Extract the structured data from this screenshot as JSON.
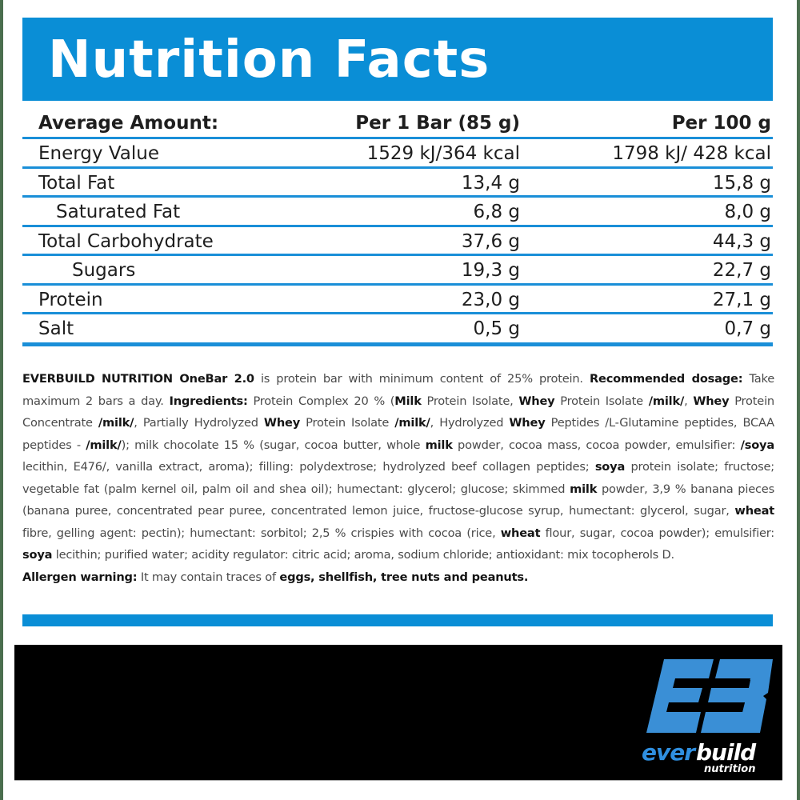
{
  "header": {
    "title": "Nutrition Facts",
    "color": "#0a8ed6"
  },
  "table": {
    "columns": {
      "label": "Average Amount:",
      "per_bar": "Per 1 Bar (85 g)",
      "per_100g": "Per 100 g"
    },
    "rows": [
      {
        "label": "Energy Value",
        "per_bar": "1529 kJ/364 kcal",
        "per_100g": "1798 kJ/ 428 kcal",
        "indent": 0
      },
      {
        "label": "Total Fat",
        "per_bar": "13,4 g",
        "per_100g": "15,8 g",
        "indent": 0
      },
      {
        "label": "Saturated Fat",
        "per_bar": "6,8 g",
        "per_100g": "8,0 g",
        "indent": 1
      },
      {
        "label": "Total Carbohydrate",
        "per_bar": "37,6 g",
        "per_100g": "44,3 g",
        "indent": 0
      },
      {
        "label": "Sugars",
        "per_bar": "19,3 g",
        "per_100g": "22,7 g",
        "indent": 2
      },
      {
        "label": "Protein",
        "per_bar": "23,0 g",
        "per_100g": "27,1 g",
        "indent": 0
      },
      {
        "label": "Salt",
        "per_bar": "0,5 g",
        "per_100g": "0,7 g",
        "indent": 0
      }
    ]
  },
  "description": {
    "product_name": "EVERBUILD NUTRITION OneBar 2.0",
    "intro": " is protein bar with minimum content of 25% protein. ",
    "dosage_label": "Recommended dosage:",
    "dosage_text": " Take maximum 2 bars a day. ",
    "ingredients_label": "Ingredients:",
    "ingredients_parts": [
      {
        "t": " Protein Complex 20 % (",
        "b": false
      },
      {
        "t": "Milk",
        "b": true
      },
      {
        "t": " Protein Isolate, ",
        "b": false
      },
      {
        "t": "Whey",
        "b": true
      },
      {
        "t": " Protein Isolate ",
        "b": false
      },
      {
        "t": "/milk/",
        "b": true
      },
      {
        "t": ", ",
        "b": false
      },
      {
        "t": "Whey",
        "b": true
      },
      {
        "t": " Protein Concentrate ",
        "b": false
      },
      {
        "t": "/milk/",
        "b": true
      },
      {
        "t": ", Partially Hydrolyzed ",
        "b": false
      },
      {
        "t": "Whey",
        "b": true
      },
      {
        "t": " Protein Isolate ",
        "b": false
      },
      {
        "t": "/milk/",
        "b": true
      },
      {
        "t": ", Hydrolyzed ",
        "b": false
      },
      {
        "t": "Whey",
        "b": true
      },
      {
        "t": " Peptides /L-Glutamine peptides, BCAA peptides - ",
        "b": false
      },
      {
        "t": "/milk/",
        "b": true
      },
      {
        "t": "); milk chocolate 15 % (sugar, cocoa butter, whole ",
        "b": false
      },
      {
        "t": "milk",
        "b": true
      },
      {
        "t": " powder, cocoa mass, cocoa powder, emulsifier: ",
        "b": false
      },
      {
        "t": "/soya",
        "b": true
      },
      {
        "t": " lecithin, E476/, vanilla extract, aroma); filling: polydextrose; hydrolyzed beef collagen peptides; ",
        "b": false
      },
      {
        "t": "soya",
        "b": true
      },
      {
        "t": " protein isolate; fructose; vegetable fat (palm kernel oil, palm oil and shea oil); humectant: glycerol; glucose; skimmed ",
        "b": false
      },
      {
        "t": "milk",
        "b": true
      },
      {
        "t": " powder, 3,9 % banana pieces (banana puree, concentrated pear puree, concentrated lemon juice, fructose-glucose syrup, humectant: glycerol, sugar, ",
        "b": false
      },
      {
        "t": "wheat",
        "b": true
      },
      {
        "t": " fibre, gelling agent: pectin); humectant: sorbitol; 2,5 % crispies with cocoa (rice, ",
        "b": false
      },
      {
        "t": "wheat",
        "b": true
      },
      {
        "t": " flour, sugar, cocoa powder); emulsifier: ",
        "b": false
      },
      {
        "t": "soya",
        "b": true
      },
      {
        "t": " lecithin; purified water; acidity regulator: citric acid; aroma, sodium chloride; antioxidant: mix tocopherols D. ",
        "b": false
      }
    ],
    "allergen_label": "Allergen warning:",
    "allergen_text": " It may contain traces of ",
    "allergen_items": "eggs, shellfish, tree nuts and peanuts."
  },
  "logo": {
    "monogram": "EB",
    "brand_part1": "ever",
    "brand_part2": "build",
    "subtitle": "nutrition",
    "monogram_color": "#3a8fd6"
  }
}
